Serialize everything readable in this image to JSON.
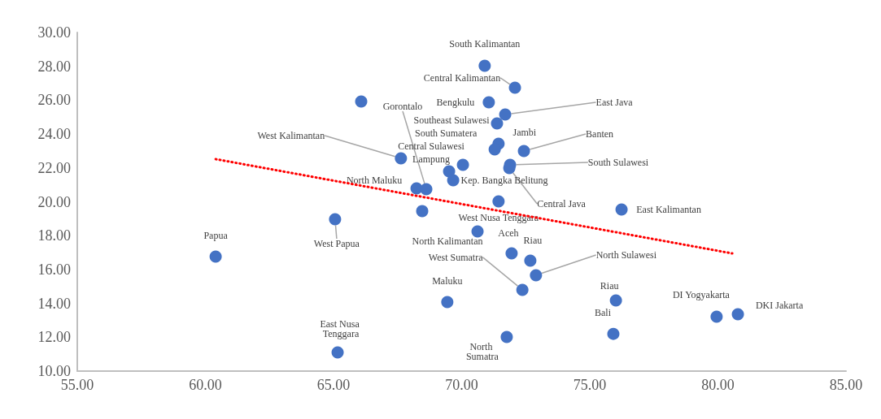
{
  "chart_data": {
    "type": "scatter",
    "xlim": [
      55,
      85
    ],
    "ylim": [
      10,
      30
    ],
    "grid": false,
    "marker": "circle",
    "xticks": [
      {
        "value": 55,
        "label": "55.00"
      },
      {
        "value": 60,
        "label": "60.00"
      },
      {
        "value": 65,
        "label": "65.00"
      },
      {
        "value": 70,
        "label": "70.00"
      },
      {
        "value": 75,
        "label": "75.00"
      },
      {
        "value": 80,
        "label": "80.00"
      },
      {
        "value": 85,
        "label": "85.00"
      }
    ],
    "yticks": [
      {
        "value": 10,
        "label": "10.00"
      },
      {
        "value": 12,
        "label": "12.00"
      },
      {
        "value": 14,
        "label": "14.00"
      },
      {
        "value": 16,
        "label": "16.00"
      },
      {
        "value": 18,
        "label": "18.00"
      },
      {
        "value": 20,
        "label": "20.00"
      },
      {
        "value": 22,
        "label": "22.00"
      },
      {
        "value": 24,
        "label": "24.00"
      },
      {
        "value": 26,
        "label": "26.00"
      },
      {
        "value": 28,
        "label": "28.00"
      },
      {
        "value": 30,
        "label": "30.00"
      }
    ],
    "series": [
      {
        "type": "scatter",
        "color": "#4472c4",
        "x": [
          60.4,
          65.06,
          65.16,
          66.08,
          67.63,
          68.24,
          68.62,
          68.46,
          69.51,
          70.05,
          69.67,
          71.44,
          70.62,
          71.95,
          72.68,
          72.9,
          72.37,
          69.44,
          71.76,
          76.02,
          75.92,
          79.95,
          80.78,
          76.24,
          70.9,
          72.08,
          71.06,
          71.7,
          71.38,
          71.44,
          71.29,
          72.43,
          71.89,
          71.86
        ],
        "values": [
          16.76,
          18.97,
          11.1,
          25.92,
          22.57,
          20.79,
          20.74,
          19.45,
          21.8,
          22.18,
          21.27,
          20.02,
          18.25,
          16.95,
          16.52,
          15.66,
          14.8,
          14.08,
          12.01,
          14.17,
          12.2,
          13.21,
          13.36,
          19.54,
          28.03,
          26.74,
          25.88,
          25.16,
          24.63,
          23.43,
          23.09,
          23.0,
          22.18,
          21.99
        ],
        "value_labels": [
          "Papua",
          "West Papua",
          "East Nusa Tenggara",
          null,
          "West Kalimantan",
          "North Maluku",
          "Gorontalo",
          null,
          "Lampung",
          "Central Sulawesi",
          "Kep. Bangka Belitung",
          "West Nusa Tenggara",
          "North Kalimantan",
          "Aceh",
          "Riau",
          "North Sulawesi",
          "West Sumatra",
          "Maluku",
          "North Sumatra",
          "Riau",
          "Bali",
          "DI Yogyakarta",
          "DKI Jakarta",
          "East Kalimantan",
          "South Kalimantan",
          "Central Kalimantan",
          "Bengkulu",
          "East Java",
          "Southeast Sulawesi",
          "Jambi",
          "South Sumatera",
          "Banten",
          "South Sulawesi",
          "Central Java"
        ]
      },
      {
        "type": "line",
        "color": "#ff0000",
        "line_style": "dotted",
        "marker": "none",
        "x": [
          60.4,
          80.56
        ],
        "values": [
          22.52,
          16.95
        ]
      }
    ]
  }
}
